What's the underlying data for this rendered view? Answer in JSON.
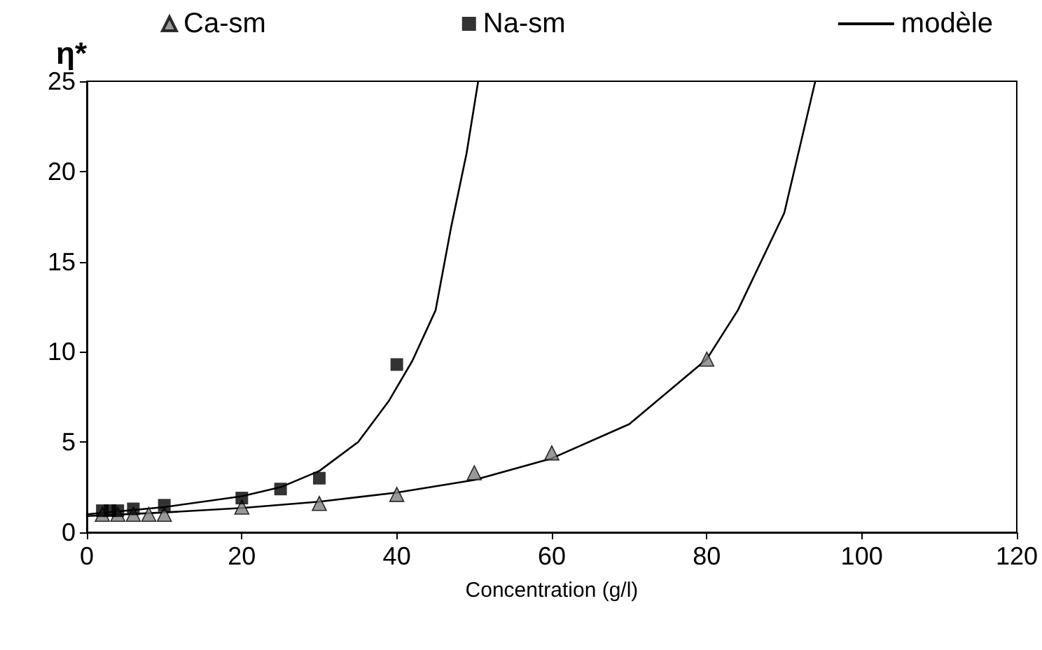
{
  "chart_data": {
    "type": "scatter",
    "xlabel": "Concentration (g/l)",
    "ylabel": "η*",
    "xlim": [
      0,
      120
    ],
    "xticks": [
      0,
      20,
      40,
      60,
      80,
      100,
      120
    ],
    "ylim": [
      0,
      25
    ],
    "yticks": [
      0,
      5,
      10,
      15,
      20,
      25
    ],
    "grid": false,
    "legend": "top",
    "series": [
      {
        "name": "Ca-sm",
        "marker": "triangle",
        "color": "#808080",
        "x": [
          2,
          4,
          6,
          8,
          10,
          20,
          30,
          40,
          50,
          60,
          80
        ],
        "values": [
          1.0,
          1.0,
          1.0,
          1.0,
          1.0,
          1.4,
          1.6,
          2.1,
          3.3,
          4.4,
          9.6
        ]
      },
      {
        "name": "Na-sm",
        "marker": "square",
        "color": "#000000",
        "x": [
          2,
          3,
          4,
          6,
          10,
          20,
          25,
          30,
          40
        ],
        "values": [
          1.2,
          1.2,
          1.2,
          1.3,
          1.5,
          1.9,
          2.4,
          3.0,
          9.3
        ]
      },
      {
        "name": "modèle",
        "type": "line",
        "marker": "none",
        "line_style": "solid",
        "color": "#000000",
        "x": [
          0,
          10,
          20,
          25,
          30,
          35,
          39,
          42,
          45,
          47,
          49,
          50.5
        ],
        "values": [
          1.0,
          1.4,
          2.0,
          2.5,
          3.4,
          5.0,
          7.3,
          9.5,
          12.3,
          16.9,
          21,
          25
        ]
      },
      {
        "type": "line",
        "marker": "none",
        "line_style": "solid",
        "color": "#000000",
        "x": [
          0,
          10,
          20,
          30,
          40,
          50,
          60,
          70,
          80,
          84,
          90,
          94
        ],
        "values": [
          0.9,
          1.1,
          1.35,
          1.7,
          2.2,
          2.9,
          4.1,
          6.0,
          9.6,
          12.3,
          17.7,
          25
        ]
      }
    ]
  }
}
